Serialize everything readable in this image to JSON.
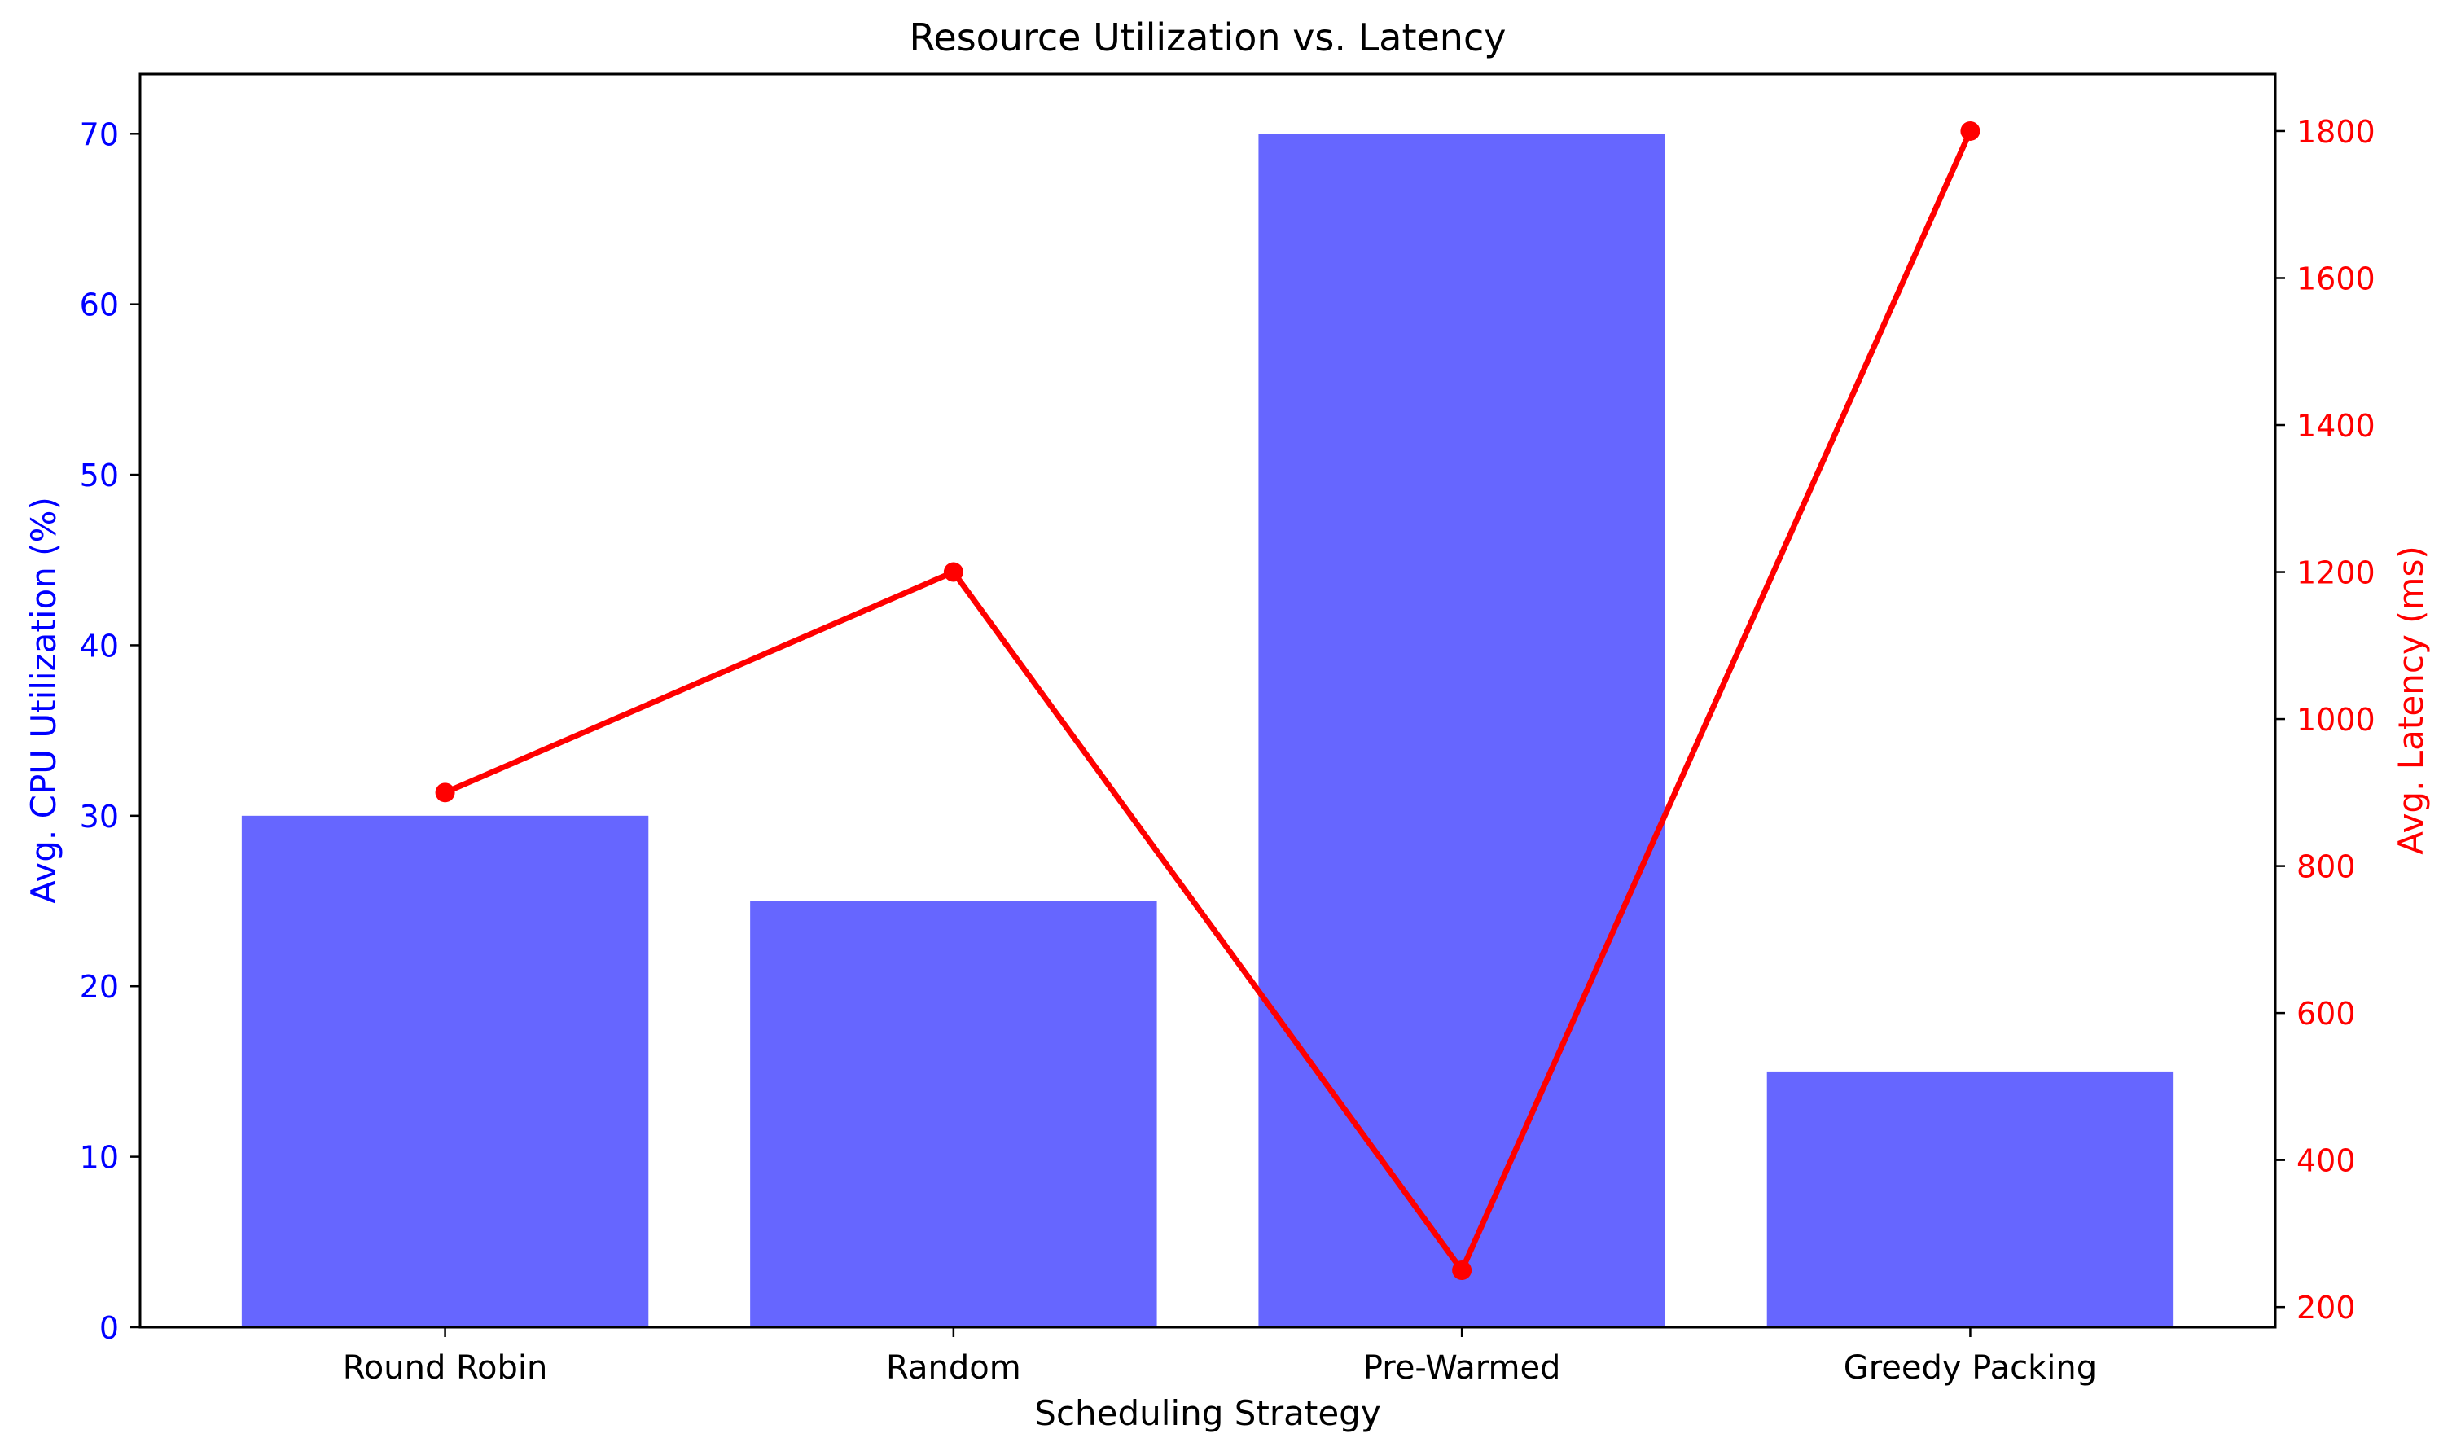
{
  "chart_data": {
    "type": "bar",
    "title": "Resource Utilization vs. Latency",
    "xlabel": "Scheduling Strategy",
    "categories": [
      "Round Robin",
      "Random",
      "Pre-Warmed",
      "Greedy Packing"
    ],
    "bar_series": {
      "values": [
        30,
        25,
        70,
        15
      ],
      "axis_label": "Avg. CPU Utilization (%)",
      "ylim": [
        0,
        73.5
      ],
      "ticks": [
        0,
        10,
        20,
        30,
        40,
        50,
        60,
        70
      ],
      "color": "#6666ff",
      "tick_color": "#0000ff"
    },
    "line_series": {
      "type": "line",
      "values": [
        900,
        1200,
        250,
        1800
      ],
      "axis_label": "Avg. Latency (ms)",
      "ylim": [
        172.5,
        1877.5
      ],
      "ticks": [
        200,
        400,
        600,
        800,
        1000,
        1200,
        1400,
        1600,
        1800
      ],
      "color": "#ff0000",
      "marker": "circle"
    },
    "grid": false,
    "legend": "none"
  }
}
